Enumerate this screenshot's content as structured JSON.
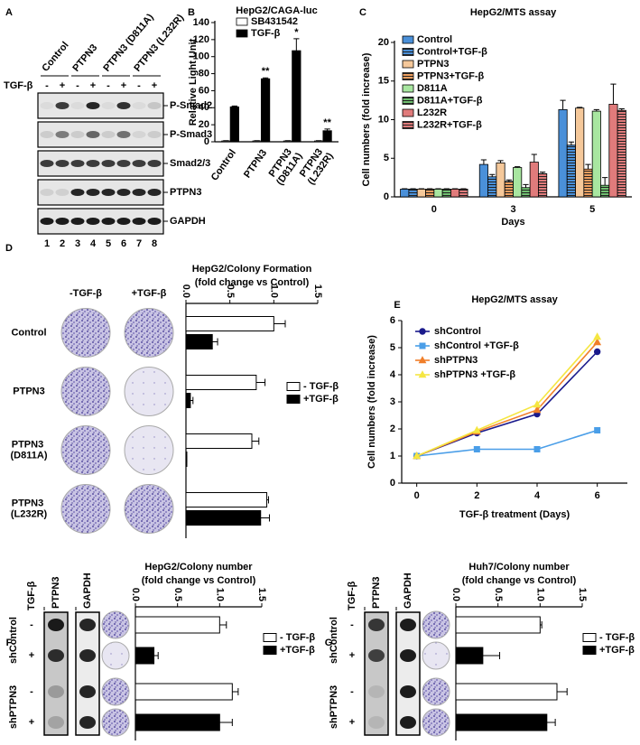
{
  "blot_a": {
    "label": "A",
    "groups": [
      "Control",
      "PTPN3",
      "PTPN3 (D811A)",
      "PTPN3 (L232R)"
    ],
    "treatment": "TGF-β",
    "signs": [
      "-",
      "+",
      "-",
      "+",
      "-",
      "+",
      "-",
      "+"
    ],
    "bands": [
      "P-Smad2",
      "P-Smad3",
      "Smad2/3",
      "PTPN3",
      "GAPDH"
    ],
    "lanes": [
      "1",
      "2",
      "3",
      "4",
      "5",
      "6",
      "7",
      "8"
    ]
  },
  "chart_data": [
    {
      "label": "B",
      "type": "bar",
      "title": "HepG2/CAGA-luc",
      "ylabel": "Relative Light Unit",
      "categories": [
        "Control",
        "PTPN3",
        "PTPN3 (D811A)",
        "PTPN3 (L232R)"
      ],
      "series": [
        {
          "name": "SB431542",
          "color": "#ffffff",
          "values": [
            1,
            1,
            1,
            1
          ],
          "errors": [
            0.3,
            0.3,
            0.3,
            0.3
          ]
        },
        {
          "name": "TGF-β",
          "color": "#000000",
          "values": [
            41,
            74,
            107,
            13
          ],
          "errors": [
            1,
            1,
            14,
            2
          ]
        }
      ],
      "significance": [
        null,
        "**",
        "*",
        "**"
      ],
      "ylim": [
        0,
        140
      ],
      "yticks": [
        0,
        20,
        40,
        60,
        80,
        100,
        120,
        140
      ]
    },
    {
      "label": "C",
      "type": "bar",
      "title": "HepG2/MTS assay",
      "ylabel": "Cell numbers (fold increase)",
      "xlabel": "Days",
      "categories": [
        "0",
        "3",
        "5"
      ],
      "series": [
        {
          "name": "Control",
          "color": "#4a90d9",
          "hatch": false,
          "values": [
            1,
            4.2,
            11.3
          ],
          "errors": [
            0.05,
            0.6,
            1.2
          ]
        },
        {
          "name": "Control+TGF-β",
          "color": "#4a90d9",
          "hatch": true,
          "values": [
            1,
            2.6,
            6.7
          ],
          "errors": [
            0.05,
            0.3,
            0.4
          ]
        },
        {
          "name": "PTPN3",
          "color": "#f5c89a",
          "hatch": false,
          "values": [
            1,
            4.4,
            11.5
          ],
          "errors": [
            0.05,
            0.3,
            0.1
          ]
        },
        {
          "name": "PTPN3+TGF-β",
          "color": "#f0a060",
          "hatch": true,
          "values": [
            1,
            2.0,
            3.6
          ],
          "errors": [
            0.05,
            0.2,
            0.6
          ]
        },
        {
          "name": "D811A",
          "color": "#a8e6a0",
          "hatch": false,
          "values": [
            1,
            3.8,
            11.1
          ],
          "errors": [
            0.05,
            0.1,
            0.2
          ]
        },
        {
          "name": "D811A+TGF-β",
          "color": "#70c070",
          "hatch": true,
          "values": [
            1,
            1.2,
            1.5
          ],
          "errors": [
            0.05,
            0.4,
            1.0
          ]
        },
        {
          "name": "L232R",
          "color": "#e07b7b",
          "hatch": false,
          "values": [
            1,
            4.5,
            12.0
          ],
          "errors": [
            0.05,
            1.0,
            2.6
          ]
        },
        {
          "name": "L232R+TGF-β",
          "color": "#e07b7b",
          "hatch": true,
          "values": [
            1,
            3.0,
            11.2
          ],
          "errors": [
            0.05,
            0.2,
            0.2
          ]
        }
      ],
      "ylim": [
        0,
        20
      ],
      "yticks": [
        0,
        5,
        10,
        15,
        20
      ]
    },
    {
      "label": "D",
      "type": "barh",
      "title": "HepG2/Colony Formation",
      "subtitle": "(fold change vs Control)",
      "image_headers": [
        "-TGF-β",
        "+TGF-β"
      ],
      "categories": [
        "Control",
        "PTPN3",
        "PTPN3 (D811A)",
        "PTPN3 (L232R)"
      ],
      "series": [
        {
          "name": "- TGF-β",
          "color": "#ffffff",
          "values": [
            1.0,
            0.8,
            0.75,
            0.92
          ],
          "errors": [
            0.13,
            0.1,
            0.08,
            0.02
          ]
        },
        {
          "name": "+TGF-β",
          "color": "#000000",
          "values": [
            0.3,
            0.05,
            0.01,
            0.85
          ],
          "errors": [
            0.06,
            0.03,
            0,
            0.1
          ]
        }
      ],
      "xlim": [
        0,
        1.5
      ],
      "xticks": [
        {
          "value": 0,
          "label": "0.0"
        },
        0.5,
        {
          "value": 1,
          "label": "1.0"
        },
        1.5
      ]
    },
    {
      "label": "E",
      "type": "line",
      "title": "HepG2/MTS assay",
      "xlabel": "TGF-β treatment (Days)",
      "ylabel": "Cell numbers (fold increase)",
      "x": [
        0,
        2,
        4,
        6
      ],
      "series": [
        {
          "name": "shControl",
          "color": "#1a1a8c",
          "values": [
            1,
            1.85,
            2.55,
            4.85
          ]
        },
        {
          "name": "shControl +TGF-β",
          "color": "#4a9ee8",
          "values": [
            1,
            1.25,
            1.25,
            1.95
          ]
        },
        {
          "name": "shPTPN3",
          "color": "#f07f2a",
          "values": [
            1,
            1.9,
            2.7,
            5.2
          ]
        },
        {
          "name": "shPTPN3 +TGF-β",
          "color": "#f5e642",
          "values": [
            1,
            1.95,
            2.9,
            5.4
          ]
        }
      ],
      "xlim": [
        -0.5,
        7
      ],
      "xticks": [
        0,
        2,
        4,
        6
      ],
      "ylim": [
        0,
        6
      ],
      "yticks": [
        0,
        1,
        2,
        3,
        4,
        5,
        6
      ]
    },
    {
      "label": "F",
      "type": "barh",
      "title": "HepG2/Colony number",
      "subtitle": "(fold change vs Control)",
      "categories": [
        "shControl",
        "shPTPN3"
      ],
      "series": [
        {
          "name": "- TGF-β",
          "color": "#ffffff",
          "values": [
            1.0,
            1.15
          ],
          "errors": [
            0.08,
            0.07
          ]
        },
        {
          "name": "+TGF-β",
          "color": "#000000",
          "values": [
            0.22,
            1.0
          ],
          "errors": [
            0.05,
            0.15
          ]
        }
      ],
      "xlim": [
        0,
        1.5
      ],
      "xticks": [
        {
          "value": 0,
          "label": "0.0"
        },
        0.5,
        {
          "value": 1,
          "label": "1.0"
        },
        1.5
      ]
    },
    {
      "label": "G",
      "type": "barh",
      "title": "Huh7/Colony number",
      "subtitle": "(fold change vs Control)",
      "categories": [
        "shControl",
        "shPTPN3"
      ],
      "series": [
        {
          "name": "- TGF-β",
          "color": "#ffffff",
          "values": [
            1.0,
            1.2
          ],
          "errors": [
            0.02,
            0.12
          ]
        },
        {
          "name": "+TGF-β",
          "color": "#000000",
          "values": [
            0.32,
            1.08
          ],
          "errors": [
            0.2,
            0.1
          ]
        }
      ],
      "xlim": [
        0,
        1.5
      ],
      "xticks": [
        {
          "value": 0,
          "label": "0.0"
        },
        0.5,
        {
          "value": 1,
          "label": "1.0"
        },
        1.5
      ]
    }
  ],
  "blot_f": {
    "treatment": "TGF-β",
    "columns": [
      "PTPN3",
      "GAPDH"
    ],
    "signs": [
      "-",
      "+",
      "-",
      "+"
    ]
  },
  "blot_g": {
    "treatment": "TGF-β",
    "columns": [
      "PTPN3",
      "GAPDH"
    ],
    "signs": [
      "-",
      "+",
      "-",
      "+"
    ]
  }
}
